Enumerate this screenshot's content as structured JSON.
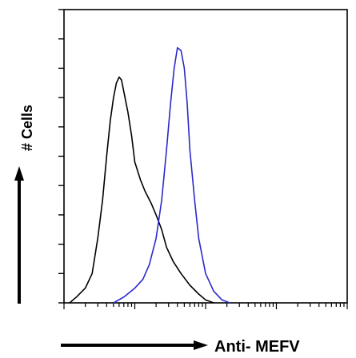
{
  "chart_data": {
    "type": "line",
    "title": "",
    "xlabel": "Anti- MEFV",
    "ylabel": "# Cells",
    "x_scale": "log",
    "xlim": [
      1,
      10000
    ],
    "ylim": [
      0,
      100
    ],
    "grid": false,
    "legend": "none",
    "series": [
      {
        "color": "#000000",
        "x": [
          1.2,
          1.5,
          2,
          2.5,
          3,
          3.5,
          4,
          4.5,
          5,
          5.5,
          6,
          6.5,
          7,
          8,
          9,
          10,
          12,
          14,
          17,
          20,
          24,
          28,
          35,
          45,
          60,
          80,
          100,
          130
        ],
        "y": [
          0,
          2,
          5,
          10,
          22,
          35,
          50,
          62,
          70,
          75,
          77,
          76,
          72,
          65,
          57,
          48,
          42,
          38,
          34,
          30,
          25,
          19,
          14,
          10,
          6,
          3,
          1,
          0
        ]
      },
      {
        "color": "#2929cc",
        "x": [
          5,
          7,
          10,
          13,
          16,
          20,
          24,
          28,
          32,
          36,
          40,
          45,
          50,
          55,
          60,
          70,
          80,
          100,
          130,
          170,
          220
        ],
        "y": [
          0,
          2,
          5,
          8,
          13,
          22,
          35,
          52,
          68,
          80,
          87,
          86,
          80,
          68,
          52,
          35,
          22,
          10,
          4,
          1,
          0
        ]
      }
    ]
  }
}
